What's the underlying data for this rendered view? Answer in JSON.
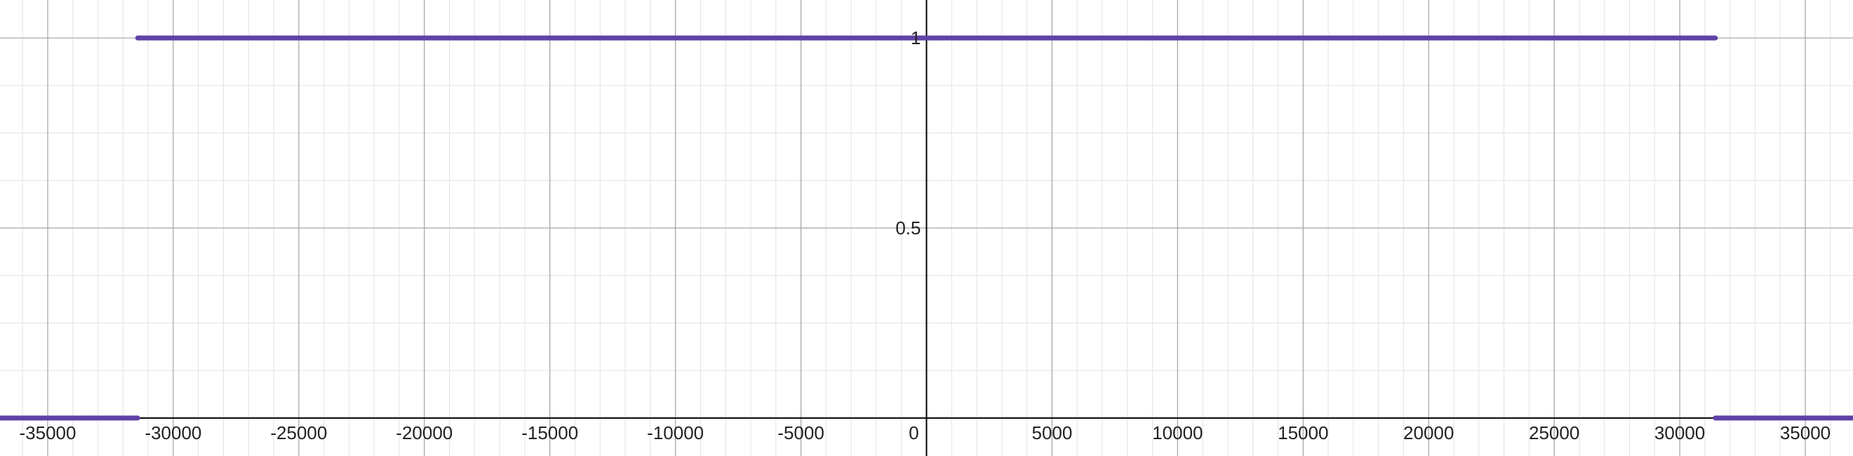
{
  "colors": {
    "background": "#ffffff",
    "minor_grid": "#e3e3e3",
    "major_grid": "#a3a3a3",
    "axis": "#000000",
    "series": "#6042a6"
  },
  "chart_data": {
    "type": "line",
    "title": "",
    "xlabel": "",
    "ylabel": "",
    "grid": true,
    "xlim": [
      -36900,
      36900
    ],
    "ylim": [
      -0.1,
      1.1
    ],
    "x_ticks": [
      -35000,
      -30000,
      -25000,
      -20000,
      -15000,
      -10000,
      -5000,
      0,
      5000,
      10000,
      15000,
      20000,
      25000,
      30000,
      35000
    ],
    "x_tick_labels": [
      "-35000",
      "-30000",
      "-25000",
      "-20000",
      "-15000",
      "-10000",
      "-5000",
      "0",
      "5000",
      "10000",
      "15000",
      "20000",
      "25000",
      "30000",
      "35000"
    ],
    "y_ticks": [
      0.5,
      1
    ],
    "y_tick_labels": [
      "0.5",
      "1"
    ],
    "x_minor_step": 1000,
    "y_minor_step": 0.125,
    "series": [
      {
        "segments": [
          {
            "x": [
              -36900,
              -31416
            ],
            "y": [
              0,
              0
            ]
          },
          {
            "x": [
              -31416,
              31416
            ],
            "y": [
              1,
              1
            ]
          },
          {
            "x": [
              31416,
              36900
            ],
            "y": [
              0,
              0
            ]
          }
        ]
      }
    ]
  }
}
